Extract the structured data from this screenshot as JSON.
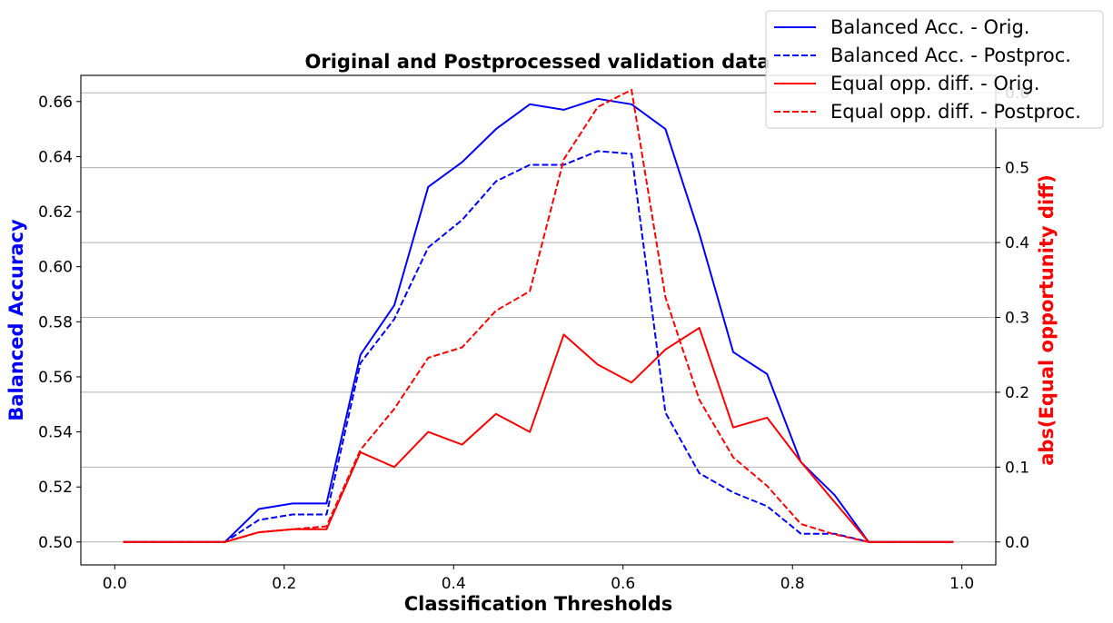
{
  "chart_data": {
    "type": "line",
    "title": "Original and Postprocessed validation data",
    "xlabel": "Classification Thresholds",
    "ylabel": "Balanced Accuracy",
    "ylabel_right": "abs(Equal opportunity diff)",
    "ylabel_color": "#0000ff",
    "ylabel_right_color": "#ff0000",
    "xlim": [
      -0.04,
      1.04
    ],
    "ylim": [
      0.4917,
      0.6695
    ],
    "ylim_right": [
      -0.0306,
      0.6233
    ],
    "xticks": [
      0.0,
      0.2,
      0.4,
      0.6,
      0.8,
      1.0
    ],
    "xtick_labels": [
      "0.0",
      "0.2",
      "0.4",
      "0.6",
      "0.8",
      "1.0"
    ],
    "yticks": [
      0.5,
      0.52,
      0.54,
      0.56,
      0.58,
      0.6,
      0.62,
      0.64,
      0.66
    ],
    "ytick_labels": [
      "0.50",
      "0.52",
      "0.54",
      "0.56",
      "0.58",
      "0.60",
      "0.62",
      "0.64",
      "0.66"
    ],
    "yticks_right": [
      0.0,
      0.1,
      0.2,
      0.3,
      0.4,
      0.5,
      0.6
    ],
    "ytick_right_labels": [
      "0.0",
      "0.1",
      "0.2",
      "0.3",
      "0.4",
      "0.5",
      "0.6"
    ],
    "grid": "horizontal, right axis",
    "legend_position": "top-right",
    "x": [
      0.01,
      0.05,
      0.09,
      0.13,
      0.17,
      0.21,
      0.25,
      0.29,
      0.33,
      0.37,
      0.41,
      0.45,
      0.49,
      0.53,
      0.57,
      0.61,
      0.65,
      0.69,
      0.73,
      0.77,
      0.81,
      0.85,
      0.89,
      0.93,
      0.97,
      0.99
    ],
    "series": [
      {
        "name": "Balanced Acc. - Orig.",
        "axis": "left",
        "color": "#0000ff",
        "dash": "solid",
        "values": [
          0.5,
          0.5,
          0.5,
          0.5,
          0.512,
          0.514,
          0.514,
          0.568,
          0.586,
          0.629,
          0.638,
          0.65,
          0.659,
          0.657,
          0.661,
          0.659,
          0.65,
          0.612,
          0.569,
          0.561,
          0.529,
          0.517,
          0.5,
          0.5,
          0.5,
          0.5
        ]
      },
      {
        "name": "Balanced Acc. - Postproc.",
        "axis": "left",
        "color": "#0000ff",
        "dash": "dashed",
        "values": [
          0.5,
          0.5,
          0.5,
          0.5,
          0.508,
          0.51,
          0.51,
          0.565,
          0.581,
          0.607,
          0.617,
          0.631,
          0.637,
          0.637,
          0.642,
          0.641,
          0.547,
          0.525,
          0.518,
          0.513,
          0.503,
          0.503,
          0.5,
          0.5,
          0.5,
          0.5
        ]
      },
      {
        "name": "Equal opp. diff. - Orig.",
        "axis": "right",
        "color": "#ff0000",
        "dash": "solid",
        "values": [
          0.0,
          0.0,
          0.0,
          0.0,
          0.013,
          0.017,
          0.017,
          0.12,
          0.1,
          0.147,
          0.13,
          0.171,
          0.147,
          0.277,
          0.237,
          0.213,
          0.257,
          0.286,
          0.153,
          0.166,
          0.107,
          0.053,
          0.0,
          0.0,
          0.0,
          0.0
        ]
      },
      {
        "name": "Equal opp. diff. - Postproc.",
        "axis": "right",
        "color": "#ff0000",
        "dash": "dashed",
        "values": [
          0.0,
          0.0,
          0.0,
          0.0,
          0.013,
          0.017,
          0.021,
          0.123,
          0.178,
          0.246,
          0.26,
          0.309,
          0.335,
          0.511,
          0.581,
          0.604,
          0.327,
          0.19,
          0.113,
          0.075,
          0.024,
          0.01,
          0.0,
          0.0,
          0.0,
          0.0
        ]
      }
    ]
  }
}
